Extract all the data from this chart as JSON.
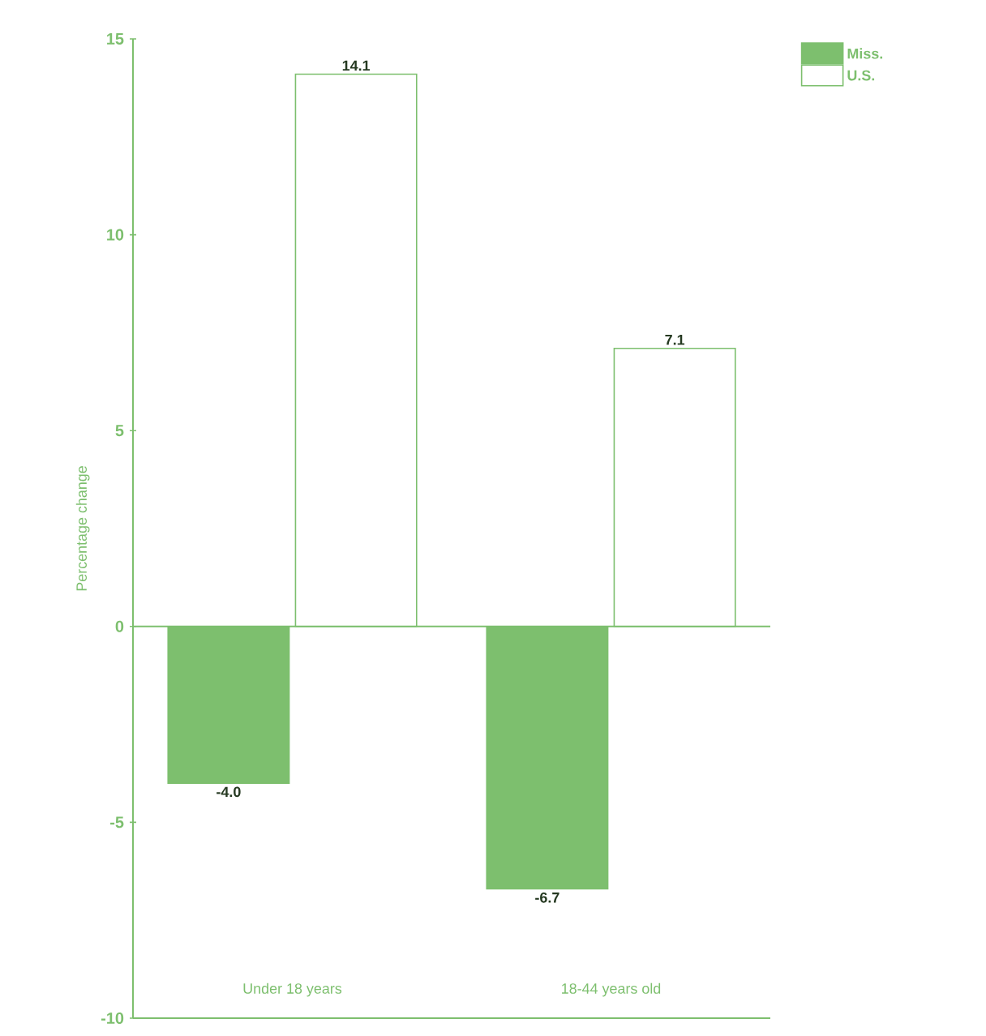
{
  "chart_data": {
    "type": "bar",
    "ylabel": "Percentage change",
    "categories": [
      "Under 18 years",
      "18-44 years old"
    ],
    "series": [
      {
        "name": "Miss.",
        "color": "#7dbf6e",
        "values": [
          -4.0,
          -6.7
        ],
        "value_labels": [
          "-4.0",
          "-6.7"
        ]
      },
      {
        "name": "U.S.",
        "color": "#ffffff",
        "values": [
          14.1,
          7.1
        ],
        "value_labels": [
          "14.1",
          "7.1"
        ]
      }
    ],
    "ref_lines": [
      {
        "axis": "y",
        "value": 0,
        "color": "#7dbf6e"
      }
    ],
    "ylim": [
      -10,
      15
    ],
    "yticks": [
      -10,
      -5,
      0,
      5,
      10,
      15
    ],
    "legend": "top right",
    "grid": false
  }
}
